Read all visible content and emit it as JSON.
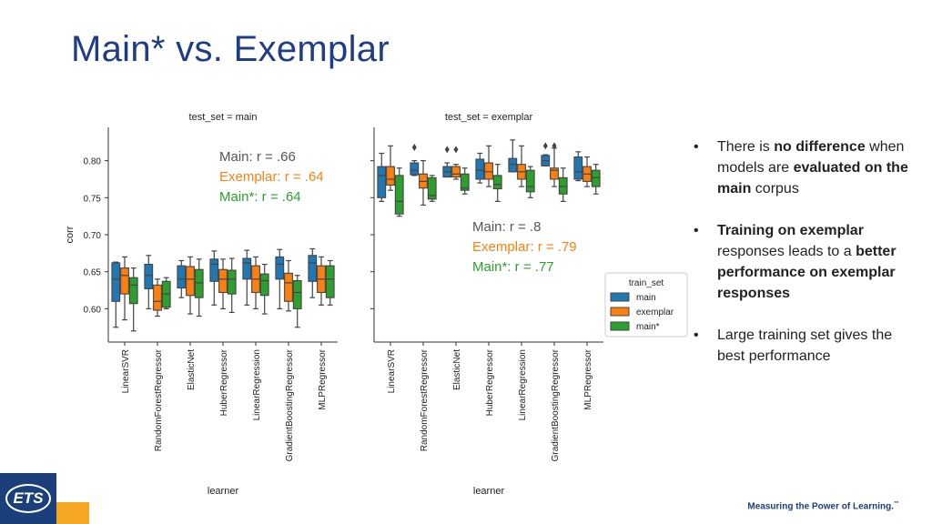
{
  "slide": {
    "title": "Main* vs. Exemplar",
    "logo_text": "ETS",
    "tagline": "Measuring the Power of Learning.",
    "trademark": "™"
  },
  "bullets": [
    {
      "parts": [
        {
          "t": "There is ",
          "b": false
        },
        {
          "t": "no difference",
          "b": true
        },
        {
          "t": " when models are ",
          "b": false
        },
        {
          "t": "evaluated on the main",
          "b": true
        },
        {
          "t": " corpus",
          "b": false
        }
      ]
    },
    {
      "parts": [
        {
          "t": "Training on exemplar",
          "b": true
        },
        {
          "t": " responses leads to a ",
          "b": false
        },
        {
          "t": "better performance on exemplar responses",
          "b": true
        }
      ]
    },
    {
      "parts": [
        {
          "t": "Large training set gives the best performance",
          "b": false
        }
      ]
    }
  ],
  "chart_data": [
    {
      "type": "box",
      "title": "test_set = main",
      "xlabel": "learner",
      "ylabel": "corr",
      "ylim": [
        0.555,
        0.845
      ],
      "yticks": [
        0.6,
        0.65,
        0.7,
        0.75,
        0.8
      ],
      "ytick_labels": [
        "0.60",
        "0.65",
        "0.70",
        "0.75",
        "0.80"
      ],
      "categories": [
        "LinearSVR",
        "RandomForestRegressor",
        "ElasticNet",
        "HuberRegressor",
        "LinearRegression",
        "GradientBoostingRegressor",
        "MLPRegressor"
      ],
      "annotations": [
        "Main: r = .66",
        "Exemplar: r = .64",
        "Main*: r = .64"
      ],
      "series": [
        {
          "name": "main",
          "boxes": [
            [
              0.575,
              0.61,
              0.64,
              0.662,
              0.663
            ],
            [
              0.6,
              0.627,
              0.645,
              0.66,
              0.672
            ],
            [
              0.615,
              0.628,
              0.64,
              0.658,
              0.665
            ],
            [
              0.605,
              0.637,
              0.66,
              0.667,
              0.678
            ],
            [
              0.605,
              0.64,
              0.662,
              0.668,
              0.679
            ],
            [
              0.6,
              0.64,
              0.66,
              0.67,
              0.68
            ],
            [
              0.615,
              0.637,
              0.662,
              0.672,
              0.681
            ]
          ]
        },
        {
          "name": "exemplar",
          "boxes": [
            [
              0.585,
              0.62,
              0.645,
              0.655,
              0.67
            ],
            [
              0.59,
              0.598,
              0.61,
              0.632,
              0.64
            ],
            [
              0.593,
              0.618,
              0.64,
              0.657,
              0.67
            ],
            [
              0.6,
              0.622,
              0.64,
              0.653,
              0.667
            ],
            [
              0.6,
              0.622,
              0.64,
              0.658,
              0.67
            ],
            [
              0.597,
              0.61,
              0.635,
              0.648,
              0.665
            ],
            [
              0.605,
              0.622,
              0.64,
              0.658,
              0.67
            ]
          ]
        },
        {
          "name": "main*",
          "boxes": [
            [
              0.57,
              0.607,
              0.632,
              0.642,
              0.655
            ],
            [
              0.6,
              0.602,
              0.62,
              0.637,
              0.642
            ],
            [
              0.59,
              0.615,
              0.635,
              0.653,
              0.667
            ],
            [
              0.595,
              0.62,
              0.64,
              0.652,
              0.668
            ],
            [
              0.593,
              0.618,
              0.638,
              0.647,
              0.66
            ],
            [
              0.575,
              0.6,
              0.622,
              0.638,
              0.645
            ],
            [
              0.605,
              0.615,
              0.64,
              0.658,
              0.665
            ]
          ]
        }
      ]
    },
    {
      "type": "box",
      "title": "test_set = exemplar",
      "xlabel": "learner",
      "ylabel": "",
      "ylim": [
        0.555,
        0.845
      ],
      "yticks": [
        0.6,
        0.65,
        0.7,
        0.75,
        0.8
      ],
      "categories": [
        "LinearSVR",
        "RandomForestRegressor",
        "ElasticNet",
        "HuberRegressor",
        "LinearRegression",
        "GradientBoostingRegressor",
        "MLPRegressor"
      ],
      "annotations": [
        "Main: r = .8",
        "Exemplar: r = .79",
        "Main*: r = .77"
      ],
      "series": [
        {
          "name": "main",
          "boxes": [
            [
              0.745,
              0.75,
              0.78,
              0.792,
              0.81
            ],
            [
              0.78,
              0.781,
              0.787,
              0.797,
              0.8
            ],
            [
              0.778,
              0.778,
              0.785,
              0.792,
              0.797
            ],
            [
              0.77,
              0.775,
              0.787,
              0.802,
              0.81
            ],
            [
              0.785,
              0.785,
              0.795,
              0.803,
              0.828
            ],
            [
              0.793,
              0.793,
              0.8,
              0.807,
              0.808
            ],
            [
              0.773,
              0.775,
              0.785,
              0.805,
              0.812
            ]
          ],
          "outliers": [
            [],
            [
              0.818
            ],
            [
              0.815
            ],
            [],
            [],
            [
              0.82
            ],
            []
          ]
        },
        {
          "name": "exemplar",
          "boxes": [
            [
              0.76,
              0.767,
              0.775,
              0.792,
              0.82
            ],
            [
              0.74,
              0.763,
              0.772,
              0.782,
              0.8
            ],
            [
              0.775,
              0.778,
              0.782,
              0.792,
              0.795
            ],
            [
              0.765,
              0.775,
              0.785,
              0.797,
              0.82
            ],
            [
              0.765,
              0.775,
              0.785,
              0.795,
              0.82
            ],
            [
              0.765,
              0.775,
              0.787,
              0.79,
              0.817
            ],
            [
              0.765,
              0.772,
              0.782,
              0.792,
              0.805
            ]
          ],
          "outliers": [
            [],
            [],
            [
              0.815
            ],
            [],
            [],
            [
              0.82
            ],
            []
          ]
        },
        {
          "name": "main*",
          "boxes": [
            [
              0.725,
              0.728,
              0.745,
              0.78,
              0.79
            ],
            [
              0.745,
              0.748,
              0.753,
              0.777,
              0.78
            ],
            [
              0.755,
              0.76,
              0.763,
              0.782,
              0.79
            ],
            [
              0.745,
              0.762,
              0.768,
              0.78,
              0.795
            ],
            [
              0.75,
              0.758,
              0.765,
              0.787,
              0.792
            ],
            [
              0.745,
              0.755,
              0.765,
              0.777,
              0.79
            ],
            [
              0.755,
              0.765,
              0.777,
              0.787,
              0.795
            ]
          ]
        }
      ]
    }
  ],
  "legend": {
    "title": "train_set",
    "items": [
      {
        "label": "main",
        "color": "#1f77b4"
      },
      {
        "label": "exemplar",
        "color": "#ff7f0e"
      },
      {
        "label": "main*",
        "color": "#2ca02c"
      }
    ]
  },
  "colors": {
    "main": "#1f77b4",
    "exemplar": "#ff7f0e",
    "main*": "#2ca02c",
    "title": "#1f3c88",
    "brand": "#1b3f7a",
    "orange": "#f5a623"
  }
}
